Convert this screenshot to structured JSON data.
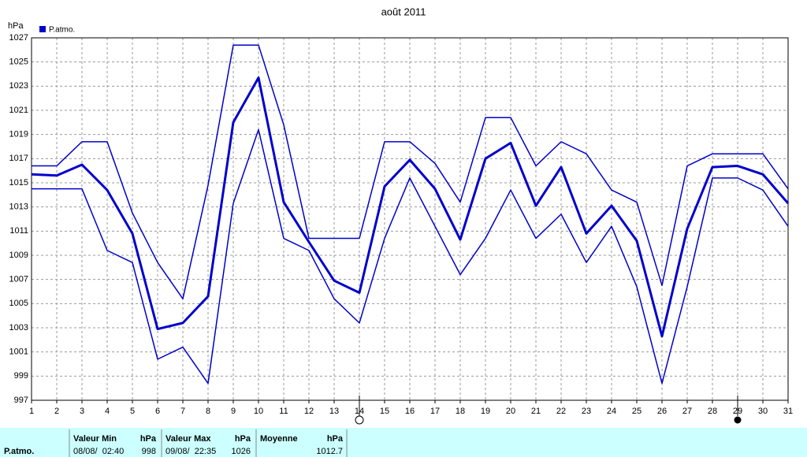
{
  "chart_data": {
    "type": "line",
    "title": "août 2011",
    "y_label": "hPa",
    "x": [
      1,
      2,
      3,
      4,
      5,
      6,
      7,
      8,
      9,
      10,
      11,
      12,
      13,
      14,
      15,
      16,
      17,
      18,
      19,
      20,
      21,
      22,
      23,
      24,
      25,
      26,
      27,
      28,
      29,
      30,
      31
    ],
    "xlim": [
      1,
      31
    ],
    "xticks": [
      1,
      2,
      3,
      4,
      5,
      6,
      7,
      8,
      9,
      10,
      11,
      12,
      13,
      14,
      15,
      16,
      17,
      18,
      19,
      20,
      21,
      22,
      23,
      24,
      25,
      26,
      27,
      28,
      29,
      30,
      31
    ],
    "ylim": [
      997,
      1027
    ],
    "yticks": [
      997,
      999,
      1001,
      1003,
      1005,
      1007,
      1009,
      1011,
      1013,
      1015,
      1017,
      1019,
      1021,
      1023,
      1025,
      1027
    ],
    "grid": true,
    "series": [
      {
        "name": "P.atmo.",
        "color": "#0000cc",
        "width": 3,
        "values": [
          1015.7,
          1015.6,
          1016.5,
          1014.4,
          1010.8,
          1002.9,
          1003.4,
          1005.6,
          1020.0,
          1023.7,
          1013.4,
          1010.1,
          1006.9,
          1005.9,
          1014.7,
          1016.9,
          1014.5,
          1010.3,
          1017.0,
          1018.3,
          1013.1,
          1016.3,
          1010.8,
          1013.1,
          1010.2,
          1002.3,
          1011.2,
          1016.3,
          1016.4,
          1015.7,
          1013.3
        ]
      },
      {
        "color": "#0000cc",
        "width": 1.5,
        "values": [
          1016.4,
          1016.4,
          1018.4,
          1018.4,
          1012.5,
          1008.4,
          1005.4,
          1014.8,
          1026.4,
          1026.4,
          1019.8,
          1010.4,
          1010.4,
          1010.4,
          1018.4,
          1018.4,
          1016.6,
          1013.4,
          1020.4,
          1020.4,
          1016.4,
          1018.4,
          1017.4,
          1014.4,
          1013.4,
          1006.5,
          1016.4,
          1017.4,
          1017.4,
          1017.4,
          1014.5
        ]
      },
      {
        "color": "#0000cc",
        "width": 1.5,
        "values": [
          1014.5,
          1014.5,
          1014.5,
          1009.4,
          1008.4,
          1000.4,
          1001.4,
          998.4,
          1013.3,
          1019.4,
          1010.4,
          1009.4,
          1005.4,
          1003.4,
          1010.4,
          1015.4,
          1011.4,
          1007.4,
          1010.4,
          1014.4,
          1010.4,
          1012.4,
          1008.4,
          1011.4,
          1006.4,
          998.4,
          1006.4,
          1015.4,
          1015.4,
          1014.4,
          1011.4
        ]
      }
    ]
  },
  "summary": {
    "row_label": "P.atmo.",
    "min": {
      "label": "Valeur Min",
      "unit": "hPa",
      "date": "08/08/  02:40",
      "value": "998"
    },
    "max": {
      "label": "Valeur Max",
      "unit": "hPa",
      "date": "09/08/  22:35",
      "value": "1026"
    },
    "mean": {
      "label": "Moyenne",
      "unit": "hPa",
      "value": "1012.7"
    }
  }
}
